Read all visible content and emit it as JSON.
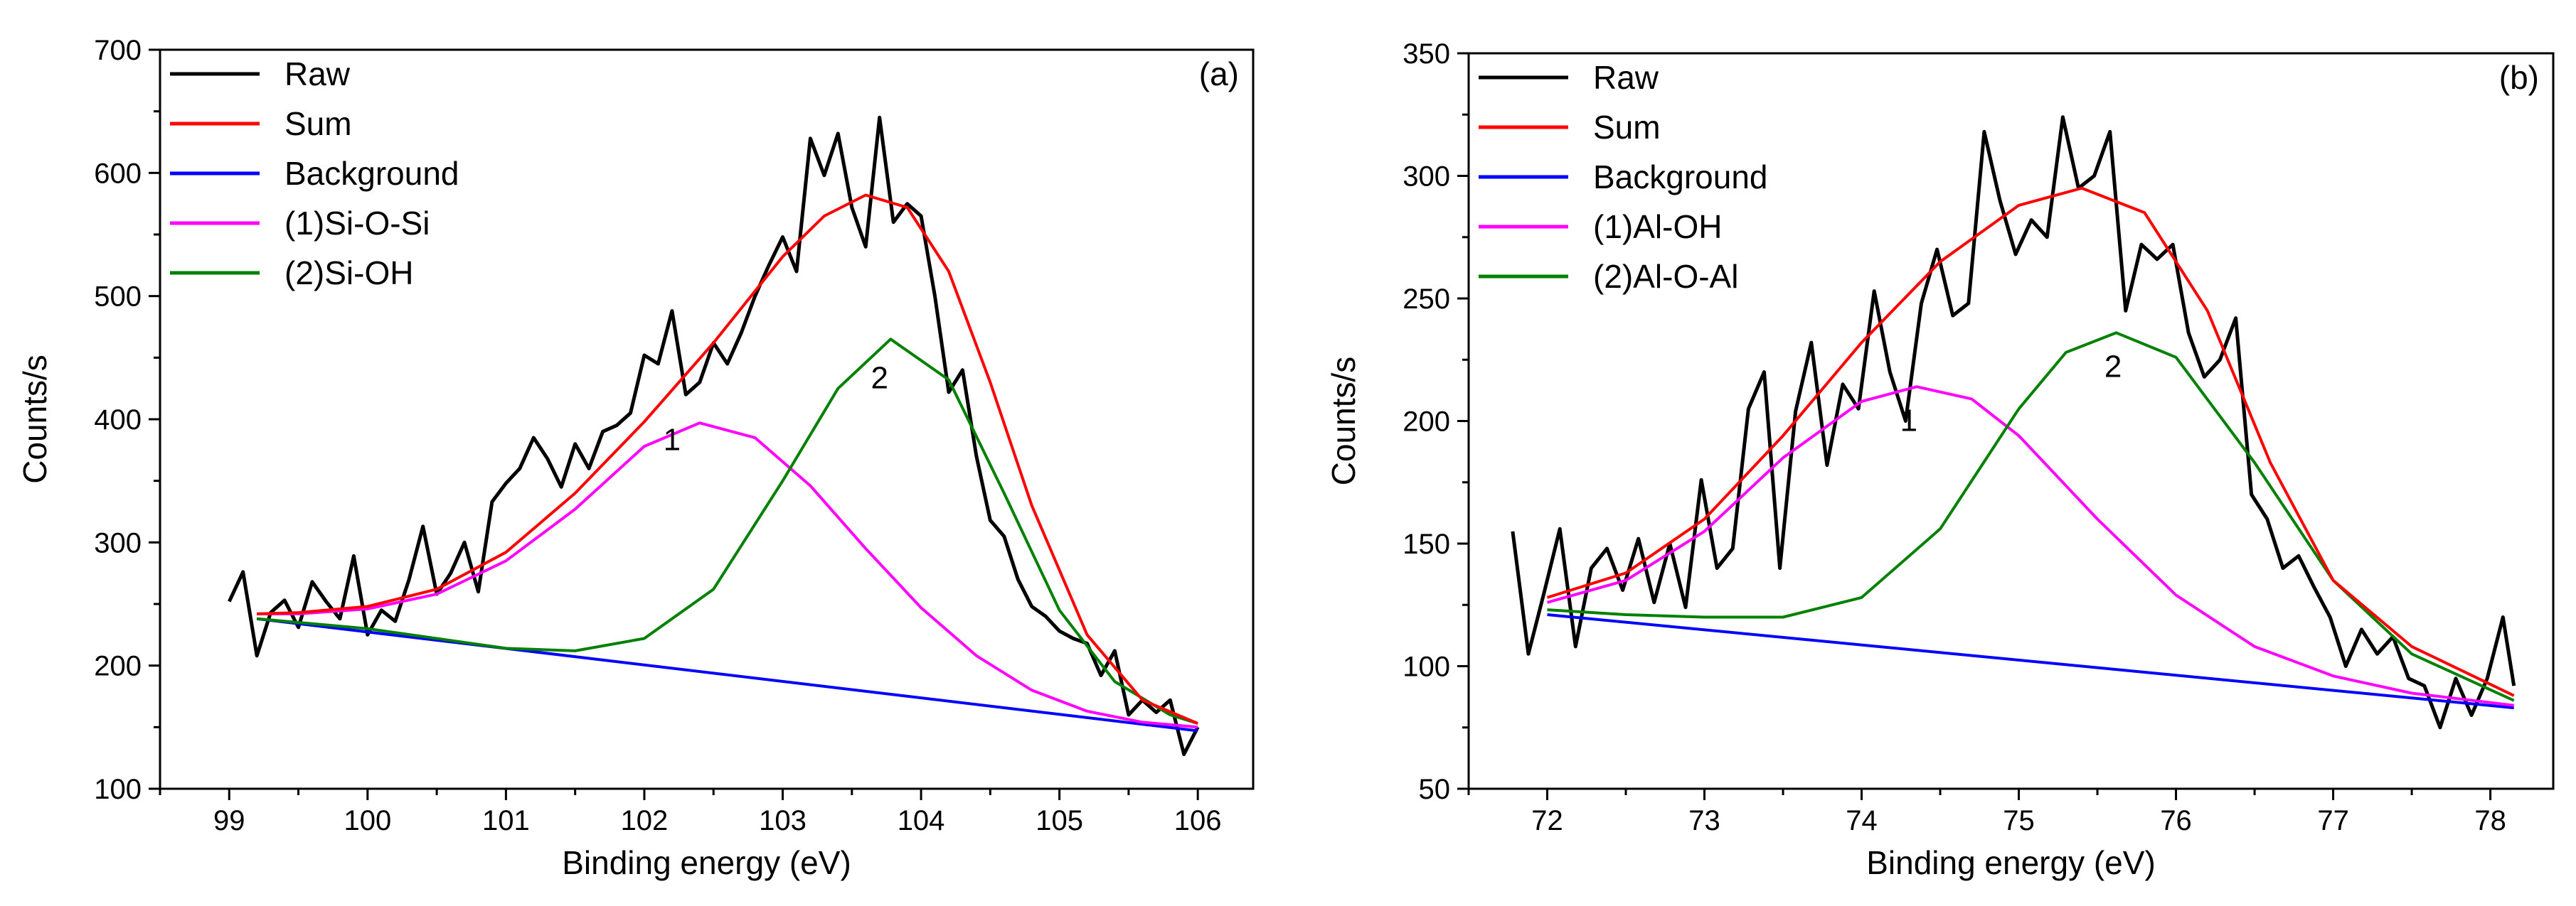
{
  "chart_data": [
    {
      "type": "line",
      "panel_label": "(a)",
      "xlabel": "Binding energy (eV)",
      "ylabel": "Counts/s",
      "xlim": [
        98.5,
        106.4
      ],
      "ylim": [
        100,
        700
      ],
      "xticks": [
        99,
        100,
        101,
        102,
        103,
        104,
        105,
        106
      ],
      "yticks": [
        100,
        200,
        300,
        400,
        500,
        600,
        700
      ],
      "legend_position": "top-left",
      "legend": [
        {
          "key": "raw",
          "label": "Raw",
          "color": "#000000"
        },
        {
          "key": "sum",
          "label": "Sum",
          "color": "#ff0000"
        },
        {
          "key": "background",
          "label": "Background",
          "color": "#0000ff"
        },
        {
          "key": "peak1",
          "label": "(1)Si-O-Si",
          "color": "#ff00ff"
        },
        {
          "key": "peak2",
          "label": "(2)Si-OH",
          "color": "#008000"
        }
      ],
      "peak_labels": [
        {
          "text": "1",
          "x": 102.2,
          "y": 375
        },
        {
          "text": "2",
          "x": 103.7,
          "y": 425
        }
      ],
      "series": [
        {
          "key": "raw",
          "x": [
            99.0,
            99.1,
            99.2,
            99.3,
            99.4,
            99.5,
            99.6,
            99.7,
            99.8,
            99.9,
            100.0,
            100.1,
            100.2,
            100.3,
            100.4,
            100.5,
            100.6,
            100.7,
            100.8,
            100.9,
            101.0,
            101.1,
            101.2,
            101.3,
            101.4,
            101.5,
            101.6,
            101.7,
            101.8,
            101.9,
            102.0,
            102.1,
            102.2,
            102.3,
            102.4,
            102.5,
            102.6,
            102.7,
            102.8,
            102.9,
            103.0,
            103.1,
            103.2,
            103.3,
            103.4,
            103.5,
            103.6,
            103.7,
            103.8,
            103.9,
            104.0,
            104.1,
            104.2,
            104.3,
            104.4,
            104.5,
            104.6,
            104.7,
            104.8,
            104.9,
            105.0,
            105.1,
            105.2,
            105.3,
            105.4,
            105.5,
            105.6,
            105.7,
            105.8,
            105.9,
            106.0
          ],
          "y": [
            252,
            276,
            208,
            243,
            253,
            231,
            268,
            252,
            238,
            289,
            225,
            245,
            236,
            270,
            313,
            258,
            275,
            300,
            260,
            333,
            348,
            360,
            385,
            368,
            345,
            380,
            360,
            390,
            395,
            405,
            452,
            445,
            488,
            420,
            430,
            462,
            445,
            470,
            500,
            525,
            548,
            520,
            628,
            598,
            632,
            572,
            540,
            645,
            560,
            575,
            565,
            500,
            422,
            440,
            370,
            318,
            305,
            270,
            248,
            240,
            228,
            222,
            218,
            192,
            212,
            160,
            172,
            162,
            172,
            128,
            150
          ]
        },
        {
          "key": "background",
          "x": [
            99.2,
            106.0
          ],
          "y": [
            238,
            147
          ]
        },
        {
          "key": "peak1",
          "x": [
            99.2,
            99.5,
            100.0,
            100.5,
            101.0,
            101.5,
            102.0,
            102.4,
            102.8,
            103.2,
            103.6,
            104.0,
            104.4,
            104.8,
            105.2,
            105.6,
            106.0
          ],
          "y": [
            242,
            242,
            246,
            258,
            285,
            327,
            378,
            397,
            385,
            346,
            295,
            247,
            208,
            180,
            163,
            154,
            150
          ]
        },
        {
          "key": "peak2",
          "x": [
            99.2,
            100.0,
            101.0,
            101.5,
            102.0,
            102.5,
            103.0,
            103.4,
            103.78,
            104.2,
            104.6,
            105.0,
            105.4,
            105.8,
            106.0
          ],
          "y": [
            238,
            230,
            214,
            212,
            222,
            262,
            350,
            425,
            465,
            432,
            340,
            245,
            187,
            160,
            153
          ]
        },
        {
          "key": "sum",
          "x": [
            99.2,
            99.5,
            100.0,
            100.5,
            101.0,
            101.5,
            102.0,
            102.5,
            103.0,
            103.3,
            103.6,
            103.9,
            104.2,
            104.5,
            104.8,
            105.2,
            105.6,
            106.0
          ],
          "y": [
            242,
            243,
            248,
            262,
            292,
            340,
            398,
            462,
            532,
            565,
            582,
            572,
            520,
            430,
            330,
            225,
            172,
            153
          ]
        }
      ]
    },
    {
      "type": "line",
      "panel_label": "(b)",
      "xlabel": "Binding energy (eV)",
      "ylabel": "Counts/s",
      "xlim": [
        71.5,
        78.4
      ],
      "ylim": [
        50,
        350
      ],
      "xticks": [
        72,
        73,
        74,
        75,
        76,
        77,
        78
      ],
      "yticks": [
        50,
        100,
        150,
        200,
        250,
        300,
        350
      ],
      "legend_position": "top-left",
      "legend": [
        {
          "key": "raw",
          "label": "Raw",
          "color": "#000000"
        },
        {
          "key": "sum",
          "label": "Sum",
          "color": "#ff0000"
        },
        {
          "key": "background",
          "label": "Background",
          "color": "#0000ff"
        },
        {
          "key": "peak1",
          "label": "(1)Al-OH",
          "color": "#ff00ff"
        },
        {
          "key": "peak2",
          "label": "(2)Al-O-Al",
          "color": "#008000"
        }
      ],
      "peak_labels": [
        {
          "text": "1",
          "x": 74.3,
          "y": 196
        },
        {
          "text": "2",
          "x": 75.6,
          "y": 218
        }
      ],
      "series": [
        {
          "key": "raw",
          "x": [
            71.78,
            71.88,
            71.98,
            72.08,
            72.18,
            72.28,
            72.38,
            72.48,
            72.58,
            72.68,
            72.78,
            72.88,
            72.98,
            73.08,
            73.18,
            73.28,
            73.38,
            73.48,
            73.58,
            73.68,
            73.78,
            73.88,
            73.98,
            74.08,
            74.18,
            74.28,
            74.38,
            74.48,
            74.58,
            74.68,
            74.78,
            74.88,
            74.98,
            75.08,
            75.18,
            75.28,
            75.38,
            75.48,
            75.58,
            75.68,
            75.78,
            75.88,
            75.98,
            76.08,
            76.18,
            76.28,
            76.38,
            76.48,
            76.58,
            76.68,
            76.78,
            76.88,
            76.98,
            77.08,
            77.18,
            77.28,
            77.38,
            77.48,
            77.58,
            77.68,
            77.78,
            77.88,
            77.98,
            78.08,
            78.15
          ],
          "y": [
            155,
            105,
            130,
            156,
            108,
            140,
            148,
            131,
            152,
            126,
            150,
            124,
            176,
            140,
            148,
            205,
            220,
            140,
            204,
            232,
            182,
            215,
            205,
            253,
            220,
            200,
            248,
            270,
            243,
            248,
            318,
            290,
            268,
            282,
            275,
            324,
            295,
            300,
            318,
            245,
            272,
            266,
            272,
            236,
            218,
            225,
            242,
            170,
            160,
            140,
            145,
            132,
            120,
            100,
            115,
            105,
            112,
            95,
            92,
            75,
            95,
            80,
            95,
            120,
            92
          ]
        },
        {
          "key": "background",
          "x": [
            72.0,
            78.15
          ],
          "y": [
            121,
            83
          ]
        },
        {
          "key": "peak1",
          "x": [
            72.0,
            72.5,
            73.0,
            73.5,
            74.0,
            74.35,
            74.7,
            75.0,
            75.5,
            76.0,
            76.5,
            77.0,
            77.5,
            78.15
          ],
          "y": [
            126,
            135,
            155,
            185,
            208,
            214,
            209,
            194,
            160,
            129,
            108,
            96,
            89,
            84
          ]
        },
        {
          "key": "peak2",
          "x": [
            72.0,
            72.5,
            73.0,
            73.5,
            74.0,
            74.5,
            75.0,
            75.3,
            75.62,
            76.0,
            76.5,
            77.0,
            77.5,
            78.15
          ],
          "y": [
            123,
            121,
            120,
            120,
            128,
            156,
            205,
            228,
            236,
            226,
            183,
            135,
            105,
            86
          ]
        },
        {
          "key": "sum",
          "x": [
            72.0,
            72.5,
            73.0,
            73.5,
            74.0,
            74.5,
            75.0,
            75.4,
            75.8,
            76.2,
            76.6,
            77.0,
            77.5,
            78.15
          ],
          "y": [
            128,
            138,
            160,
            194,
            232,
            265,
            288,
            295,
            285,
            245,
            183,
            135,
            108,
            88
          ]
        }
      ]
    }
  ]
}
